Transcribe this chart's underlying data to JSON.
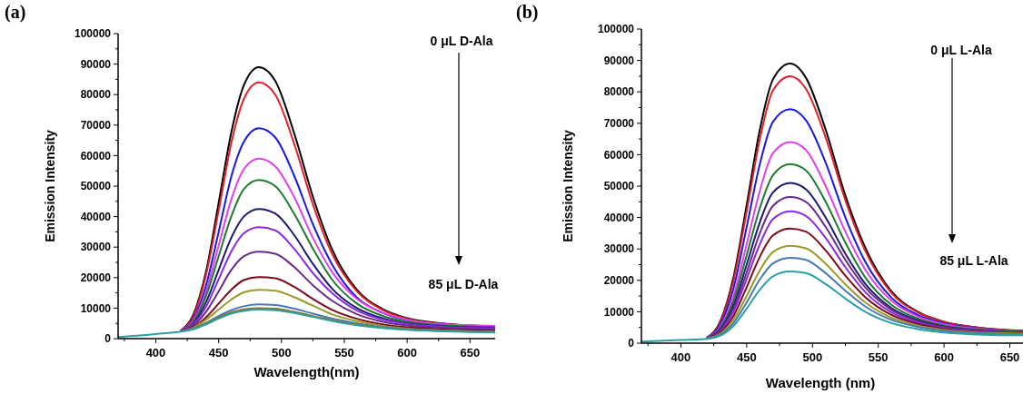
{
  "chart_data": [
    {
      "type": "line",
      "title": "(a)",
      "xlabel": "Wavelength(nm)",
      "ylabel": "Emission Intensity",
      "annotations": [
        "0 μL D-Ala",
        "85 μL D-Ala"
      ],
      "x": [
        370,
        400,
        420,
        430,
        440,
        450,
        460,
        470,
        482,
        495,
        510,
        525,
        540,
        560,
        580,
        600,
        630,
        670
      ],
      "xlim": [
        370,
        670
      ],
      "xticks": [
        {
          "value": 375,
          "label": null
        },
        400,
        {
          "value": 425,
          "label": null
        },
        450,
        {
          "value": 475,
          "label": null
        },
        500,
        {
          "value": 525,
          "label": null
        },
        550,
        {
          "value": 575,
          "label": null
        },
        600,
        {
          "value": 625,
          "label": null
        },
        650
      ],
      "ylim": [
        0,
        100000
      ],
      "yticks": [
        0,
        {
          "value": 5000,
          "label": null
        },
        10000,
        {
          "value": 15000,
          "label": null
        },
        20000,
        {
          "value": 25000,
          "label": null
        },
        30000,
        {
          "value": 35000,
          "label": null
        },
        40000,
        {
          "value": 45000,
          "label": null
        },
        50000,
        {
          "value": 55000,
          "label": null
        },
        60000,
        {
          "value": 65000,
          "label": null
        },
        70000,
        {
          "value": 75000,
          "label": null
        },
        80000,
        {
          "value": 85000,
          "label": null
        },
        90000,
        {
          "value": 95000,
          "label": null
        },
        100000
      ],
      "grid": false,
      "marker": "none",
      "line_style": "solid",
      "series": [
        {
          "color": "#000000",
          "values": [
            null,
            null,
            2700,
            8000,
            22000,
            44500,
            67500,
            83000,
            89000,
            84500,
            67500,
            46500,
            29500,
            16000,
            9800,
            6700,
            4900,
            4000
          ]
        },
        {
          "color": "#e0202a",
          "values": [
            null,
            null,
            2700,
            7500,
            21000,
            42000,
            64000,
            78500,
            84000,
            80000,
            64000,
            44000,
            28000,
            15500,
            9500,
            6500,
            4800,
            4000
          ]
        },
        {
          "color": "#1a1adc",
          "values": [
            null,
            null,
            2600,
            6500,
            17500,
            35000,
            53000,
            64500,
            69000,
            66000,
            53500,
            37500,
            24500,
            13500,
            8500,
            6000,
            4600,
            3800
          ]
        },
        {
          "color": "#e040e8",
          "values": [
            null,
            null,
            2600,
            6000,
            15500,
            30500,
            45500,
            55500,
            59000,
            56500,
            46500,
            33000,
            22000,
            13000,
            8500,
            6200,
            4700,
            4200
          ]
        },
        {
          "color": "#1e7a30",
          "values": [
            null,
            null,
            2500,
            5500,
            14000,
            27000,
            40000,
            49000,
            52000,
            50000,
            41000,
            29500,
            19500,
            11500,
            7500,
            5500,
            4300,
            3800
          ]
        },
        {
          "color": "#1a1a6e",
          "values": [
            null,
            null,
            2500,
            5000,
            12000,
            22500,
            33000,
            40000,
            42500,
            41000,
            34000,
            24500,
            16500,
            10000,
            6700,
            5000,
            4000,
            3500
          ]
        },
        {
          "color": "#8a2be2",
          "values": [
            null,
            null,
            2500,
            4800,
            10500,
            19500,
            28500,
            34500,
            36500,
            35500,
            29500,
            21500,
            15000,
            9200,
            6300,
            4800,
            3900,
            3400
          ]
        },
        {
          "color": "#6a2a8a",
          "values": [
            null,
            null,
            2400,
            4300,
            8800,
            15500,
            22500,
            27000,
            28500,
            27800,
            23500,
            17500,
            12500,
            8000,
            5600,
            4300,
            3500,
            3000
          ]
        },
        {
          "color": "#7a0a1a",
          "values": [
            null,
            null,
            2400,
            3800,
            7000,
            11500,
            16000,
            19200,
            20200,
            19800,
            17000,
            13000,
            9500,
            6500,
            4700,
            3700,
            3000,
            2600
          ]
        },
        {
          "color": "#9a9a2a",
          "values": [
            null,
            null,
            2400,
            3600,
            6200,
            9500,
            12800,
            15200,
            16000,
            15700,
            13600,
            10800,
            8000,
            5700,
            4200,
            3300,
            2700,
            2300
          ]
        },
        {
          "color": "#4a7ab0",
          "values": [
            null,
            null,
            2400,
            3300,
            5200,
            7400,
            9300,
            10600,
            11200,
            11000,
            9800,
            8200,
            6600,
            5000,
            3800,
            3100,
            2600,
            2200
          ]
        },
        {
          "color": "#8a7030",
          "values": [
            null,
            null,
            2400,
            3300,
            5000,
            7000,
            8600,
            9600,
            10000,
            9800,
            8800,
            7400,
            6000,
            4600,
            3600,
            3000,
            2500,
            2200
          ]
        },
        {
          "color": "#2aa0a0",
          "values": [
            500,
            1500,
            2300,
            3100,
            4700,
            6600,
            8200,
            9100,
            9500,
            9300,
            8400,
            7100,
            5800,
            4400,
            3500,
            2900,
            2400,
            2000
          ]
        }
      ]
    },
    {
      "type": "line",
      "title": "(b)",
      "xlabel": "Wavelength (nm)",
      "ylabel": "Emission Intensity",
      "annotations": [
        "0 μL L-Ala",
        "85 μL L-Ala"
      ],
      "x": [
        370,
        400,
        420,
        430,
        440,
        450,
        460,
        470,
        483,
        495,
        510,
        525,
        540,
        560,
        580,
        600,
        630,
        660
      ],
      "xlim": [
        370,
        660
      ],
      "xticks": [
        {
          "value": 375,
          "label": null
        },
        400,
        {
          "value": 425,
          "label": null
        },
        450,
        {
          "value": 475,
          "label": null
        },
        500,
        {
          "value": 525,
          "label": null
        },
        550,
        {
          "value": 575,
          "label": null
        },
        600,
        {
          "value": 625,
          "label": null
        },
        650
      ],
      "ylim": [
        0,
        100000
      ],
      "yticks": [
        0,
        {
          "value": 5000,
          "label": null
        },
        10000,
        {
          "value": 15000,
          "label": null
        },
        20000,
        {
          "value": 25000,
          "label": null
        },
        30000,
        {
          "value": 35000,
          "label": null
        },
        40000,
        {
          "value": 45000,
          "label": null
        },
        50000,
        {
          "value": 55000,
          "label": null
        },
        60000,
        {
          "value": 65000,
          "label": null
        },
        70000,
        {
          "value": 75000,
          "label": null
        },
        80000,
        {
          "value": 85000,
          "label": null
        },
        90000,
        {
          "value": 95000,
          "label": null
        },
        100000
      ],
      "grid": false,
      "marker": "none",
      "line_style": "solid",
      "series": [
        {
          "color": "#000000",
          "values": [
            null,
            null,
            1800,
            7000,
            21000,
            44000,
            68000,
            84000,
            89000,
            84500,
            68000,
            47000,
            30500,
            16500,
            10000,
            6800,
            4800,
            4000
          ]
        },
        {
          "color": "#e0202a",
          "values": [
            null,
            null,
            1800,
            6700,
            20000,
            42000,
            65000,
            80500,
            85000,
            81000,
            65500,
            45500,
            29500,
            16000,
            9800,
            6700,
            4700,
            3900
          ]
        },
        {
          "color": "#1a1adc",
          "values": [
            null,
            null,
            1700,
            6000,
            17500,
            37000,
            57000,
            70500,
            74500,
            71000,
            57500,
            40000,
            26000,
            14500,
            9000,
            6300,
            4500,
            3800
          ]
        },
        {
          "color": "#e040e8",
          "values": [
            null,
            null,
            1700,
            5300,
            15000,
            31500,
            48500,
            60500,
            64000,
            61500,
            50000,
            35500,
            23500,
            13500,
            8500,
            6000,
            4400,
            3700
          ]
        },
        {
          "color": "#1e7a30",
          "values": [
            null,
            null,
            1600,
            4800,
            13500,
            28000,
            43000,
            53500,
            57000,
            55000,
            45000,
            32000,
            21000,
            12200,
            7800,
            5600,
            4200,
            3600
          ]
        },
        {
          "color": "#1a1a6e",
          "values": [
            null,
            null,
            1600,
            4400,
            12000,
            25000,
            38500,
            48000,
            51000,
            49000,
            40000,
            28500,
            19000,
            11200,
            7300,
            5300,
            4000,
            3400
          ]
        },
        {
          "color": "#6a2a8a",
          "values": [
            null,
            null,
            1600,
            4100,
            11000,
            22500,
            35000,
            43700,
            46500,
            45000,
            37000,
            26500,
            17800,
            10600,
            7000,
            5100,
            3900,
            3300
          ]
        },
        {
          "color": "#8a2be2",
          "values": [
            null,
            null,
            1500,
            3800,
            10000,
            20500,
            31500,
            39500,
            42000,
            40500,
            33500,
            24200,
            16300,
            9800,
            6500,
            4800,
            3700,
            3200
          ]
        },
        {
          "color": "#7a0a1a",
          "values": [
            null,
            null,
            1500,
            3400,
            8700,
            17800,
            27500,
            34300,
            36500,
            35500,
            29500,
            21500,
            14700,
            9000,
            6100,
            4500,
            3500,
            3100
          ]
        },
        {
          "color": "#9a9a2a",
          "values": [
            null,
            null,
            1500,
            3000,
            7500,
            15000,
            23200,
            29000,
            31000,
            30200,
            25300,
            18700,
            13000,
            8100,
            5600,
            4200,
            3300,
            3000
          ]
        },
        {
          "color": "#4a7ab0",
          "values": [
            null,
            null,
            1400,
            2700,
            6500,
            13000,
            20300,
            25400,
            27200,
            26500,
            22300,
            16700,
            11700,
            7400,
            5200,
            3900,
            3100,
            2800
          ]
        },
        {
          "color": "#2aa0a0",
          "values": [
            500,
            1000,
            1400,
            2400,
            5500,
            11000,
            17000,
            21300,
            22800,
            22300,
            18800,
            14200,
            10000,
            6400,
            4500,
            3400,
            2700,
            2500
          ]
        }
      ]
    }
  ]
}
